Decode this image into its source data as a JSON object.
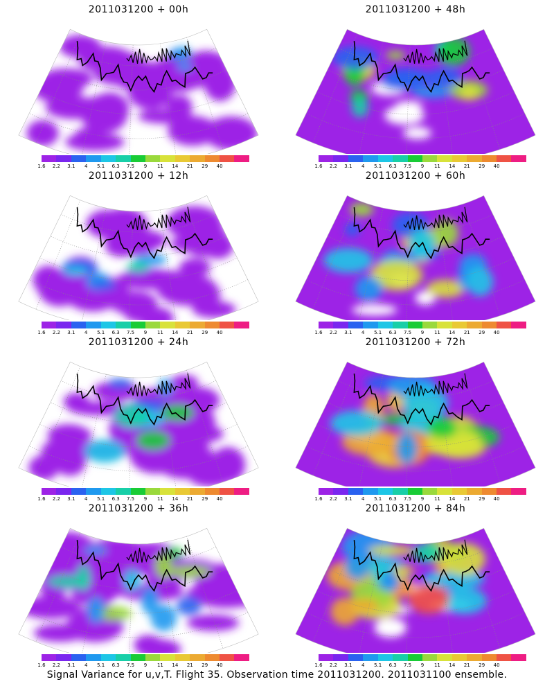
{
  "colorbar": {
    "labels": [
      "1.6",
      "2.2",
      "3.1",
      "4",
      "5.1",
      "6.3",
      "7.5",
      "9",
      "11",
      "14",
      "21",
      "29",
      "40"
    ],
    "colors": [
      "#9d23e6",
      "#7a26ef",
      "#2a62f0",
      "#1f99ef",
      "#1dc6e6",
      "#18cfa8",
      "#19cc36",
      "#9ad93c",
      "#d8e23a",
      "#e9c934",
      "#ecaa32",
      "#ee8a30",
      "#ef5245",
      "#ee1d83"
    ]
  },
  "panels": [
    {
      "title": "2011031200 + 00h",
      "intensity": 0
    },
    {
      "title": "2011031200 + 48h",
      "intensity": 4
    },
    {
      "title": "2011031200 + 12h",
      "intensity": 1
    },
    {
      "title": "2011031200 + 60h",
      "intensity": 5
    },
    {
      "title": "2011031200 + 24h",
      "intensity": 2
    },
    {
      "title": "2011031200 + 72h",
      "intensity": 6
    },
    {
      "title": "2011031200 + 36h",
      "intensity": 3
    },
    {
      "title": "2011031200 + 84h",
      "intensity": 7
    }
  ],
  "caption": "Signal Variance for u,v,T. Flight 35. Observation time 2011031200. 2011031100 ensemble."
}
